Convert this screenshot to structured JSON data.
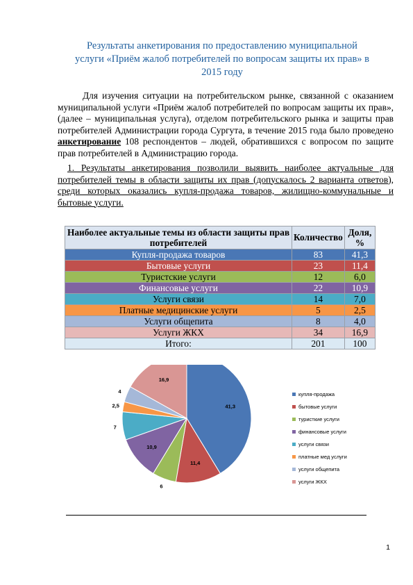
{
  "document": {
    "title_lines": [
      "Результаты анкетирования по предоставлению муниципальной",
      "услуги «Приём жалоб потребителей по вопросам защиты их прав» в",
      "2015 году"
    ],
    "intro_before": "Для изучения ситуации на потребительском рынке, связанной с оказанием муниципальной услуги «Приём жалоб потребителей по вопросам защиты их прав», (далее – муниципальная услуга), отделом потребительского рынка и защиты прав потребителей Администрации города Сургута, в течение 2015 года было проведено ",
    "intro_bold": "анкетирование",
    "intro_after": " 108 респондентов – людей, обратившихся с вопросом по защите прав потребителей в Администрацию города.",
    "finding": "1. Результаты анкетирования позволили выявить наиболее актуальные для потребителей темы в области защиты их прав (допускалось 2 варианта ответов), среди которых оказались купля-продажа товаров, жилищно-коммунальные и бытовые услуги.",
    "page_number": "1"
  },
  "table": {
    "headers": [
      "Наиболее актуальные темы из области защиты прав потребителей",
      "Количество",
      "Доля, %"
    ],
    "rows": [
      {
        "theme": "Купля-продажа товаров",
        "count": "83",
        "share": "41,3",
        "color": "#4a77b5",
        "text_color": "#ffffff"
      },
      {
        "theme": "Бытовые услуги",
        "count": "23",
        "share": "11,4",
        "color": "#c0504d",
        "text_color": "#ffffff"
      },
      {
        "theme": "Туристские услуги",
        "count": "12",
        "share": "6,0",
        "color": "#9bbb59",
        "text_color": "#000000"
      },
      {
        "theme": "Финансовые услуги",
        "count": "22",
        "share": "10,9",
        "color": "#8064a2",
        "text_color": "#ffffff"
      },
      {
        "theme": "Услуги связи",
        "count": "14",
        "share": "7,0",
        "color": "#4bacc6",
        "text_color": "#000000"
      },
      {
        "theme": "Платные медицинские услуги",
        "count": "5",
        "share": "2,5",
        "color": "#f79646",
        "text_color": "#000000"
      },
      {
        "theme": "Услуги общепита",
        "count": "8",
        "share": "4,0",
        "color": "#a5b8d8",
        "text_color": "#000000"
      },
      {
        "theme": "Услуги ЖКХ",
        "count": "34",
        "share": "16,9",
        "color": "#e6b8b7",
        "text_color": "#000000"
      }
    ],
    "total": {
      "label": "Итого:",
      "count": "201",
      "share": "100",
      "color": "#dbe9f4"
    }
  },
  "chart_data": {
    "type": "pie",
    "labels": [
      "купля-продажа",
      "бытовые услуги",
      "туристкие услуги",
      "финансовые услуги",
      "услуги связи",
      "платные мед услуги",
      "услуги общепита",
      "услуги ЖКХ"
    ],
    "values": [
      41.3,
      11.4,
      6,
      10.9,
      7,
      2.5,
      4,
      16.9
    ],
    "data_labels": [
      "41,3",
      "11,4",
      "6",
      "10,9",
      "7",
      "2,5",
      "4",
      "16,9"
    ],
    "colors": [
      "#4a77b5",
      "#c0504d",
      "#9bbb59",
      "#8064a2",
      "#4bacc6",
      "#f79646",
      "#a5b8d8",
      "#d99694"
    ],
    "legend_position": "right",
    "start": "top",
    "direction": "clockwise"
  }
}
